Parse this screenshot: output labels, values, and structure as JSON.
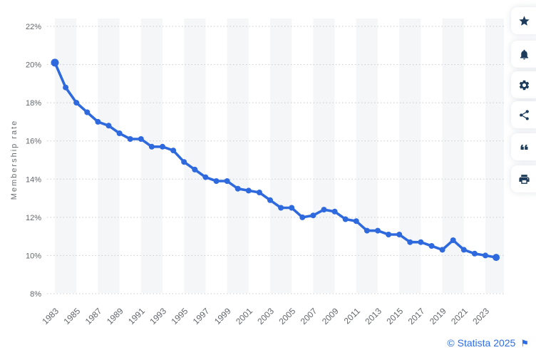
{
  "chart_data": {
    "type": "line",
    "title": "",
    "ylabel": "Membership rate",
    "xlabel": "",
    "x": [
      1983,
      1984,
      1985,
      1986,
      1987,
      1988,
      1989,
      1990,
      1991,
      1992,
      1993,
      1994,
      1995,
      1996,
      1997,
      1998,
      1999,
      2000,
      2001,
      2002,
      2003,
      2004,
      2005,
      2006,
      2007,
      2008,
      2009,
      2010,
      2011,
      2012,
      2013,
      2014,
      2015,
      2016,
      2017,
      2018,
      2019,
      2020,
      2021,
      2022,
      2023,
      2024
    ],
    "series": [
      {
        "name": "Membership rate",
        "values": [
          20.1,
          18.8,
          18.0,
          17.5,
          17.0,
          16.8,
          16.4,
          16.1,
          16.1,
          15.7,
          15.7,
          15.5,
          14.9,
          14.5,
          14.1,
          13.9,
          13.9,
          13.5,
          13.4,
          13.3,
          12.9,
          12.5,
          12.5,
          12.0,
          12.1,
          12.4,
          12.3,
          11.9,
          11.8,
          11.3,
          11.3,
          11.1,
          11.1,
          10.7,
          10.7,
          10.5,
          10.3,
          10.8,
          10.3,
          10.1,
          10.0,
          9.9
        ]
      }
    ],
    "ylim": [
      8,
      22
    ],
    "ytick_step": 2,
    "ytick_labels": [
      "8%",
      "10%",
      "12%",
      "14%",
      "16%",
      "18%",
      "20%",
      "22%"
    ],
    "xtick_labels": [
      "1983",
      "1985",
      "1987",
      "1989",
      "1991",
      "1993",
      "1995",
      "1997",
      "1999",
      "2001",
      "2003",
      "2005",
      "2007",
      "2009",
      "2011",
      "2013",
      "2015",
      "2017",
      "2019",
      "2021",
      "2023"
    ],
    "grid": "dotted-horizontal",
    "legend": "none",
    "line_color": "#2e6ade",
    "band_color": "#f5f6f7",
    "grid_color": "#c9cbce",
    "tick_color": "#63676c"
  },
  "toolbar": {
    "icon_color": "#1d3b5a",
    "buttons": [
      {
        "id": "favorite",
        "icon": "star-icon"
      },
      {
        "id": "alerts",
        "icon": "bell-icon"
      },
      {
        "id": "settings",
        "icon": "gear-icon"
      },
      {
        "id": "share",
        "icon": "share-icon"
      },
      {
        "id": "cite",
        "icon": "quote-icon"
      },
      {
        "id": "print",
        "icon": "printer-icon"
      }
    ]
  },
  "footer": {
    "copyright": "© Statista 2025",
    "flag_glyph": "⚑",
    "link_color": "#2b6de8"
  }
}
